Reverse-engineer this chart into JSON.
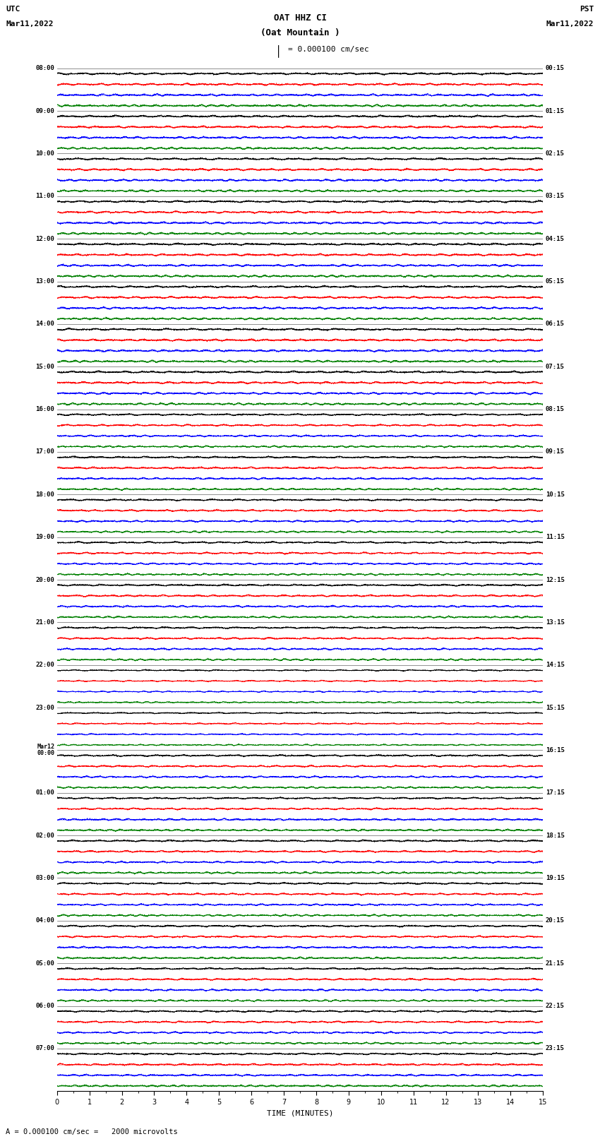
{
  "title_line1": "OAT HHZ CI",
  "title_line2": "(Oat Mountain )",
  "scale_text": "= 0.000100 cm/sec",
  "utc_label": "UTC",
  "utc_date": "Mar11,2022",
  "pst_label": "PST",
  "pst_date": "Mar11,2022",
  "bottom_note": "A = 0.000100 cm/sec =   2000 microvolts",
  "xlabel": "TIME (MINUTES)",
  "left_times": [
    "08:00",
    "09:00",
    "10:00",
    "11:00",
    "12:00",
    "13:00",
    "14:00",
    "15:00",
    "16:00",
    "17:00",
    "18:00",
    "19:00",
    "20:00",
    "21:00",
    "22:00",
    "23:00",
    "Mar12\n00:00",
    "01:00",
    "02:00",
    "03:00",
    "04:00",
    "05:00",
    "06:00",
    "07:00"
  ],
  "right_times": [
    "00:15",
    "01:15",
    "02:15",
    "03:15",
    "04:15",
    "05:15",
    "06:15",
    "07:15",
    "08:15",
    "09:15",
    "10:15",
    "11:15",
    "12:15",
    "13:15",
    "14:15",
    "15:15",
    "16:15",
    "17:15",
    "18:15",
    "19:15",
    "20:15",
    "21:15",
    "22:15",
    "23:15"
  ],
  "n_rows": 24,
  "traces_per_row": 4,
  "colors": [
    "black",
    "red",
    "blue",
    "green"
  ],
  "fig_width": 8.5,
  "fig_height": 16.13,
  "xlim": [
    0,
    15
  ],
  "xticks": [
    0,
    1,
    2,
    3,
    4,
    5,
    6,
    7,
    8,
    9,
    10,
    11,
    12,
    13,
    14,
    15
  ],
  "background_color": "white",
  "seed": 42
}
